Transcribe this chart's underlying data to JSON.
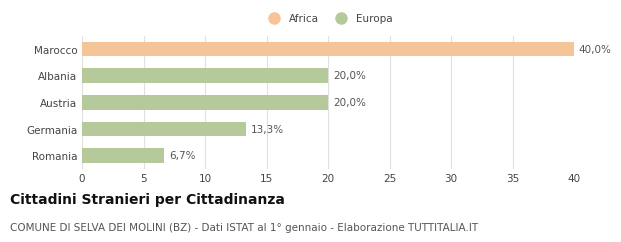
{
  "categories": [
    "Marocco",
    "Albania",
    "Austria",
    "Germania",
    "Romania"
  ],
  "values": [
    40.0,
    20.0,
    20.0,
    13.3,
    6.7
  ],
  "colors": [
    "#f5c499",
    "#b5c99a",
    "#b5c99a",
    "#b5c99a",
    "#b5c99a"
  ],
  "labels": [
    "40,0%",
    "20,0%",
    "20,0%",
    "13,3%",
    "6,7%"
  ],
  "legend": [
    {
      "label": "Africa",
      "color": "#f5c499"
    },
    {
      "label": "Europa",
      "color": "#b5c99a"
    }
  ],
  "xlim": [
    0,
    40
  ],
  "xticks": [
    0,
    5,
    10,
    15,
    20,
    25,
    30,
    35,
    40
  ],
  "title": "Cittadini Stranieri per Cittadinanza",
  "subtitle": "COMUNE DI SELVA DEI MOLINI (BZ) - Dati ISTAT al 1° gennaio - Elaborazione TUTTITALIA.IT",
  "title_fontsize": 10,
  "subtitle_fontsize": 7.5,
  "tick_fontsize": 7.5,
  "label_fontsize": 7.5,
  "bar_height": 0.55,
  "background_color": "#ffffff",
  "grid_color": "#e0e0e0"
}
